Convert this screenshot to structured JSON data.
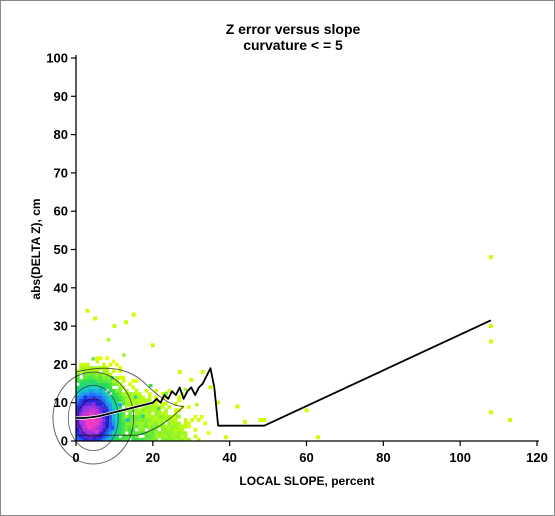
{
  "chart_data": {
    "type": "heatmap",
    "title": "Z error versus slope",
    "subtitle": "curvature < = 5",
    "xlabel": "LOCAL SLOPE, percent",
    "ylabel": "abs(DELTA Z), cm",
    "xlim": [
      0,
      120
    ],
    "ylim": [
      0,
      100
    ],
    "xticks": [
      "0",
      "20",
      "40",
      "60",
      "80",
      "100",
      "120"
    ],
    "yticks": [
      "0",
      "10",
      "20",
      "30",
      "40",
      "50",
      "60",
      "70",
      "80",
      "90",
      "100"
    ],
    "grid": false,
    "mean_line": {
      "name": "",
      "color": "#000000",
      "x": [
        0,
        2,
        4,
        6,
        8,
        10,
        12,
        14,
        16,
        18,
        20,
        21,
        22,
        23,
        24,
        25,
        26,
        27,
        28,
        29,
        30,
        31,
        32,
        33,
        34,
        35,
        36,
        37,
        38,
        49,
        108
      ],
      "y": [
        6,
        6,
        6.2,
        6.5,
        7,
        7.5,
        8,
        8.5,
        9,
        9.5,
        10,
        11,
        10,
        12,
        11,
        13,
        12,
        14,
        11,
        13,
        14,
        12,
        14,
        15,
        17,
        19,
        14,
        4,
        4,
        4,
        31.5
      ]
    },
    "density_points": [
      {
        "x": 3,
        "y": 3,
        "v": 1.0
      },
      {
        "x": 4,
        "y": 5,
        "v": 1.0
      },
      {
        "x": 5,
        "y": 2,
        "v": 0.95
      },
      {
        "x": 2,
        "y": 6,
        "v": 0.9
      },
      {
        "x": 6,
        "y": 4,
        "v": 0.85
      },
      {
        "x": 4,
        "y": 9,
        "v": 0.8
      },
      {
        "x": 7,
        "y": 7,
        "v": 0.7
      },
      {
        "x": 2,
        "y": 11,
        "v": 0.65
      },
      {
        "x": 9,
        "y": 3,
        "v": 0.6
      },
      {
        "x": 11,
        "y": 9,
        "v": 0.45
      },
      {
        "x": 13,
        "y": 5,
        "v": 0.4
      },
      {
        "x": 6,
        "y": 13,
        "v": 0.45
      },
      {
        "x": 15,
        "y": 11,
        "v": 0.3
      },
      {
        "x": 17,
        "y": 6,
        "v": 0.28
      },
      {
        "x": 9,
        "y": 16,
        "v": 0.25
      },
      {
        "x": 19,
        "y": 14,
        "v": 0.2
      },
      {
        "x": 21,
        "y": 8,
        "v": 0.18
      },
      {
        "x": 23,
        "y": 12,
        "v": 0.14
      },
      {
        "x": 4,
        "y": 21,
        "v": 0.14
      },
      {
        "x": 12,
        "y": 22,
        "v": 0.1
      },
      {
        "x": 26,
        "y": 6,
        "v": 0.1
      },
      {
        "x": 28,
        "y": 13,
        "v": 0.08
      },
      {
        "x": 31,
        "y": 9,
        "v": 0.06
      },
      {
        "x": 8,
        "y": 26,
        "v": 0.06
      }
    ],
    "outliers": [
      {
        "x": 108,
        "y": 48
      },
      {
        "x": 108,
        "y": 30
      },
      {
        "x": 108,
        "y": 26
      },
      {
        "x": 108,
        "y": 7.5
      },
      {
        "x": 113,
        "y": 5.5
      },
      {
        "x": 60,
        "y": 8
      },
      {
        "x": 63,
        "y": 1
      },
      {
        "x": 44,
        "y": 5
      },
      {
        "x": 48,
        "y": 5.5
      },
      {
        "x": 49,
        "y": 5.5
      },
      {
        "x": 39,
        "y": 1
      },
      {
        "x": 42,
        "y": 9
      },
      {
        "x": 37,
        "y": 10
      },
      {
        "x": 33,
        "y": 18
      },
      {
        "x": 3,
        "y": 34
      },
      {
        "x": 5,
        "y": 32
      },
      {
        "x": 15,
        "y": 33
      },
      {
        "x": 10,
        "y": 30
      },
      {
        "x": 13,
        "y": 31
      },
      {
        "x": 20,
        "y": 25
      },
      {
        "x": 27,
        "y": 18
      },
      {
        "x": 30,
        "y": 16
      },
      {
        "x": 35,
        "y": 14
      }
    ]
  }
}
